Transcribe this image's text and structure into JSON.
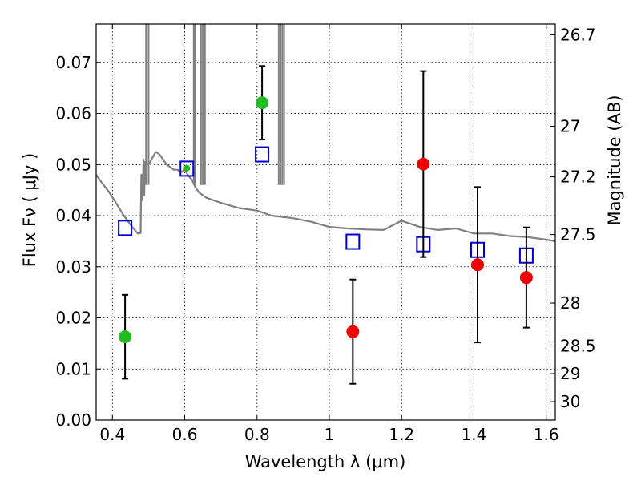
{
  "chart_data": {
    "type": "scatter",
    "title": "",
    "xlabel": "Wavelength  λ (μm)",
    "ylabel": "Flux  Fν  ( μJy )",
    "ylabel_right": "Magnitude (AB)",
    "xlim": [
      0.355,
      1.625
    ],
    "ylim": [
      0.0,
      0.0775
    ],
    "grid": true,
    "x_ticks": [
      0.4,
      0.6,
      0.8,
      1.0,
      1.2,
      1.4,
      1.6
    ],
    "x_tick_labels": [
      "0.4",
      "0.6",
      "0.8",
      "1",
      "1.2",
      "1.4",
      "1.6"
    ],
    "y_ticks": [
      0.0,
      0.01,
      0.02,
      0.03,
      0.04,
      0.05,
      0.06,
      0.07
    ],
    "y_tick_labels": [
      "0.00",
      "0.01",
      "0.02",
      "0.03",
      "0.04",
      "0.05",
      "0.06",
      "0.07"
    ],
    "right_ticks": [
      {
        "label": "26.7",
        "flux": 0.0754
      },
      {
        "label": "27",
        "flux": 0.0575
      },
      {
        "label": "27.2",
        "flux": 0.0476
      },
      {
        "label": "27.5",
        "flux": 0.0363
      },
      {
        "label": "28",
        "flux": 0.0229
      },
      {
        "label": "28.5",
        "flux": 0.0145
      },
      {
        "label": "29",
        "flux": 0.0091
      },
      {
        "label": "30",
        "flux": 0.0036
      }
    ],
    "colors": {
      "detection_green": "#22bb22",
      "detection_red": "#ee0000",
      "model_box": "#0000cc",
      "sed_line": "#808080",
      "errorbar": "#000000"
    },
    "series": [
      {
        "marker": "circle",
        "color": "#22bb22",
        "x": [
          0.435,
          0.606,
          0.814
        ],
        "y": [
          0.0163,
          0.0493,
          0.0621
        ],
        "yerr_low": [
          0.0082,
          null,
          0.0072
        ],
        "yerr_high": [
          0.0082,
          null,
          0.0072
        ]
      },
      {
        "marker": "circle",
        "color": "#ee0000",
        "x": [
          1.065,
          1.26,
          1.41,
          1.545
        ],
        "y": [
          0.0173,
          0.0501,
          0.0304,
          0.0279
        ],
        "yerr_low": [
          0.0102,
          0.0182,
          0.0152,
          0.0098
        ],
        "yerr_high": [
          0.0102,
          0.0182,
          0.0152,
          0.0098
        ]
      },
      {
        "marker": "open-square",
        "color": "#0000cc",
        "x": [
          0.435,
          0.606,
          0.814,
          1.065,
          1.26,
          1.41,
          1.545
        ],
        "y": [
          0.0376,
          0.0492,
          0.052,
          0.0349,
          0.0344,
          0.0333,
          0.0322
        ]
      },
      {
        "type": "line",
        "color": "#808080",
        "x": [
          0.355,
          0.37,
          0.39,
          0.41,
          0.43,
          0.45,
          0.47,
          0.478,
          0.48,
          0.483,
          0.486,
          0.488,
          0.49,
          0.5,
          0.52,
          0.53,
          0.54,
          0.55,
          0.56,
          0.57,
          0.58,
          0.59,
          0.6,
          0.61,
          0.62,
          0.63,
          0.64,
          0.65,
          0.66,
          0.7,
          0.75,
          0.8,
          0.84,
          0.9,
          0.95,
          1.0,
          1.05,
          1.1,
          1.15,
          1.2,
          1.25,
          1.3,
          1.35,
          1.4,
          1.45,
          1.5,
          1.55,
          1.6,
          1.625
        ],
        "y": [
          0.048,
          0.0465,
          0.0447,
          0.0425,
          0.0402,
          0.0382,
          0.0365,
          0.0366,
          0.048,
          0.043,
          0.051,
          0.044,
          0.0505,
          0.05,
          0.0525,
          0.052,
          0.051,
          0.05,
          0.0495,
          0.049,
          0.049,
          0.0485,
          0.049,
          0.0478,
          0.047,
          0.0455,
          0.0445,
          0.044,
          0.0435,
          0.0425,
          0.0415,
          0.041,
          0.04,
          0.0395,
          0.0388,
          0.0378,
          0.0375,
          0.0373,
          0.0372,
          0.039,
          0.0378,
          0.0372,
          0.0375,
          0.0365,
          0.0365,
          0.036,
          0.0358,
          0.0353,
          0.035
        ]
      }
    ],
    "emission_spikes_um": [
      0.493,
      0.5,
      0.625,
      0.628,
      0.645,
      0.65,
      0.656,
      0.86,
      0.865,
      0.87,
      0.875
    ]
  }
}
